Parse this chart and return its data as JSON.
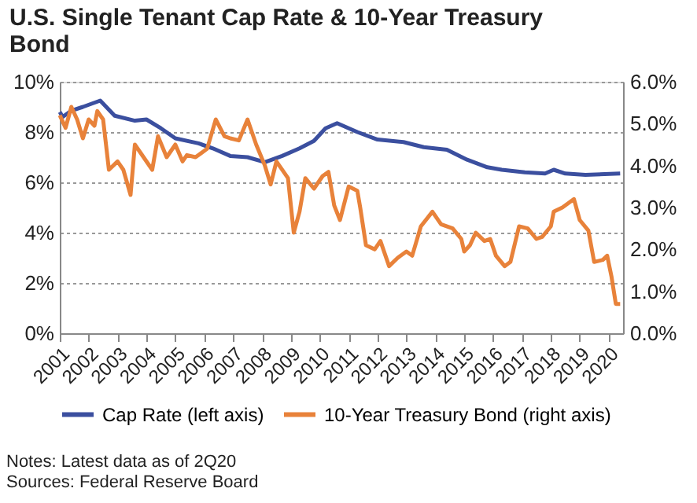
{
  "chart_data": {
    "type": "line",
    "title": "U.S. Single Tenant Cap Rate & 10-Year Treasury Bond",
    "series": [
      {
        "name": "Cap Rate (left axis)",
        "color": "#3b4f9f",
        "x": [
          2001.0,
          2001.1,
          2001.4,
          2001.8,
          2002.4,
          2002.9,
          2003.6,
          2004.0,
          2004.5,
          2005.0,
          2005.8,
          2006.3,
          2006.9,
          2007.5,
          2008.1,
          2008.7,
          2009.3,
          2009.8,
          2010.2,
          2010.6,
          2011.3,
          2012.0,
          2012.9,
          2013.6,
          2014.4,
          2015.1,
          2015.8,
          2016.3,
          2017.1,
          2017.8,
          2018.1,
          2018.5,
          2019.2,
          2020.4
        ],
        "values": [
          8.8,
          8.6,
          8.85,
          9.0,
          9.25,
          8.65,
          8.45,
          8.5,
          8.15,
          7.75,
          7.55,
          7.35,
          7.05,
          7.0,
          6.8,
          7.05,
          7.35,
          7.65,
          8.15,
          8.35,
          8.0,
          7.7,
          7.6,
          7.4,
          7.3,
          6.9,
          6.6,
          6.5,
          6.4,
          6.35,
          6.5,
          6.35,
          6.3,
          6.35
        ]
      },
      {
        "name": "10-Year Treasury Bond (right axis)",
        "color": "#e8823a",
        "axis": "y2",
        "x": [
          2001.0,
          2001.2,
          2001.4,
          2001.6,
          2001.8,
          2002.0,
          2002.2,
          2002.3,
          2002.5,
          2002.7,
          2003.0,
          2003.2,
          2003.45,
          2003.6,
          2003.9,
          2004.2,
          2004.4,
          2004.7,
          2005.0,
          2005.25,
          2005.4,
          2005.7,
          2006.1,
          2006.4,
          2006.7,
          2006.9,
          2007.2,
          2007.5,
          2007.8,
          2008.1,
          2008.3,
          2008.5,
          2008.9,
          2009.1,
          2009.3,
          2009.5,
          2009.8,
          2010.1,
          2010.3,
          2010.5,
          2010.7,
          2011.0,
          2011.3,
          2011.4,
          2011.6,
          2011.9,
          2012.1,
          2012.4,
          2012.7,
          2013.0,
          2013.2,
          2013.5,
          2013.9,
          2014.2,
          2014.6,
          2014.9,
          2015.0,
          2015.2,
          2015.4,
          2015.7,
          2015.9,
          2016.1,
          2016.4,
          2016.6,
          2016.9,
          2017.2,
          2017.5,
          2017.7,
          2018.0,
          2018.1,
          2018.4,
          2018.8,
          2019.0,
          2019.3,
          2019.5,
          2019.8,
          2019.95,
          2020.1,
          2020.25,
          2020.4
        ],
        "values": [
          5.2,
          4.9,
          5.4,
          5.1,
          4.65,
          5.1,
          4.95,
          5.3,
          5.1,
          3.9,
          4.1,
          3.9,
          3.3,
          4.5,
          4.2,
          3.9,
          4.7,
          4.2,
          4.5,
          4.1,
          4.25,
          4.2,
          4.4,
          5.1,
          4.7,
          4.65,
          4.6,
          5.1,
          4.5,
          4.0,
          3.55,
          4.1,
          3.7,
          2.4,
          2.9,
          3.7,
          3.45,
          3.75,
          3.85,
          3.05,
          2.7,
          3.5,
          3.4,
          3.0,
          2.1,
          2.0,
          2.2,
          1.6,
          1.8,
          1.95,
          1.85,
          2.55,
          2.9,
          2.6,
          2.5,
          2.25,
          1.95,
          2.1,
          2.4,
          2.2,
          2.25,
          1.85,
          1.6,
          1.7,
          2.55,
          2.5,
          2.25,
          2.3,
          2.55,
          2.9,
          3.0,
          3.2,
          2.7,
          2.45,
          1.7,
          1.75,
          1.85,
          1.35,
          0.7,
          0.7
        ]
      }
    ],
    "xlim": [
      2001,
      2020.5
    ],
    "xticks": [
      2001,
      2002,
      2003,
      2004,
      2005,
      2006,
      2007,
      2008,
      2009,
      2010,
      2011,
      2012,
      2013,
      2014,
      2015,
      2016,
      2017,
      2018,
      2019,
      2020
    ],
    "ylim": [
      0,
      10
    ],
    "yticks": [
      {
        "value": 0,
        "label": "0%"
      },
      {
        "value": 2,
        "label": "2%"
      },
      {
        "value": 4,
        "label": "4%"
      },
      {
        "value": 6,
        "label": "6%"
      },
      {
        "value": 8,
        "label": "8%"
      },
      {
        "value": 10,
        "label": "10%"
      }
    ],
    "y2lim": [
      0,
      6
    ],
    "y2ticks": [
      {
        "value": 0,
        "label": "0.0%"
      },
      {
        "value": 1,
        "label": "1.0%"
      },
      {
        "value": 2,
        "label": "2.0%"
      },
      {
        "value": 3,
        "label": "3.0%"
      },
      {
        "value": 4,
        "label": "4.0%"
      },
      {
        "value": 5,
        "label": "5.0%"
      },
      {
        "value": 6,
        "label": "6.0%"
      }
    ],
    "grid": "y",
    "legend": "bottom",
    "line_style": "solid",
    "marker": "none",
    "annotations": [
      "Notes: Latest data as of 2Q20",
      "Sources: Federal Reserve Board"
    ]
  }
}
